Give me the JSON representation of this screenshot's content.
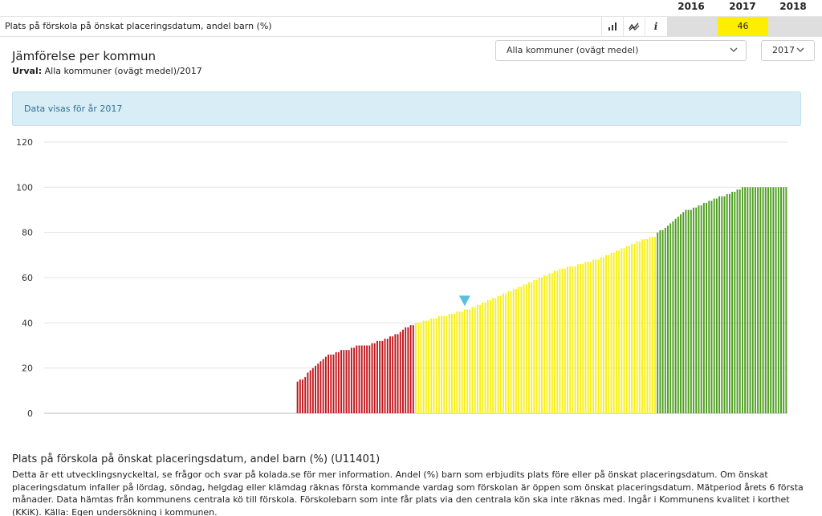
{
  "years": {
    "headers": [
      "2016",
      "2017",
      "2018"
    ],
    "selected": "2017"
  },
  "indicator_row": {
    "label": "Plats på förskola på önskat placeringsdatum, andel barn (%)",
    "value_2017": "46",
    "buttons": [
      {
        "name": "bar-chart-icon"
      },
      {
        "name": "trend-line-icon"
      },
      {
        "name": "info-icon",
        "glyph": "i"
      }
    ]
  },
  "header": {
    "title": "Jämförelse per kommun",
    "selection_label": "Urval:",
    "selection_value": "Alla kommuner (ovägt medel)/2017"
  },
  "controls": {
    "municipality_select": "Alla kommuner (ovägt medel)",
    "year_select": "2017"
  },
  "info": {
    "message": "Data visas för år 2017"
  },
  "colors": {
    "red": "#c0161c",
    "yellow": "#f7f018",
    "green": "#4c9e1e",
    "marker": "#5bc0de",
    "grid": "#e3e3e3"
  },
  "chart_data": {
    "type": "bar",
    "title": "",
    "xlabel": "",
    "ylabel": "",
    "ylim": [
      0,
      120
    ],
    "yticks": [
      0,
      20,
      40,
      60,
      80,
      100,
      120
    ],
    "grid": true,
    "category_count": 290,
    "marker_value": 46,
    "thresholds": {
      "red_below": 40,
      "green_from": 80
    },
    "values": [
      0,
      0,
      0,
      0,
      0,
      0,
      0,
      0,
      0,
      0,
      0,
      0,
      0,
      0,
      0,
      0,
      0,
      0,
      0,
      0,
      0,
      0,
      0,
      0,
      0,
      0,
      0,
      0,
      0,
      0,
      0,
      0,
      0,
      0,
      0,
      0,
      0,
      0,
      0,
      0,
      0,
      0,
      0,
      0,
      0,
      0,
      0,
      0,
      0,
      0,
      0,
      0,
      0,
      0,
      0,
      0,
      0,
      0,
      0,
      0,
      0,
      0,
      0,
      0,
      0,
      0,
      0,
      0,
      0,
      0,
      0,
      0,
      0,
      0,
      0,
      0,
      0,
      0,
      0,
      0,
      0,
      0,
      0,
      0,
      0,
      0,
      0,
      0,
      0,
      0,
      0,
      0,
      0,
      0,
      0,
      0,
      0,
      0,
      14,
      15,
      15,
      16,
      18,
      19,
      20,
      21,
      22,
      23,
      24,
      25,
      26,
      26,
      26,
      27,
      27,
      28,
      28,
      28,
      28,
      29,
      29,
      30,
      30,
      30,
      30,
      30,
      30,
      31,
      31,
      32,
      32,
      32,
      33,
      33,
      34,
      34,
      35,
      35,
      36,
      37,
      38,
      38,
      39,
      39,
      40,
      40,
      40,
      41,
      41,
      41,
      42,
      42,
      42,
      43,
      43,
      43,
      43,
      44,
      44,
      44,
      45,
      45,
      45,
      46,
      46,
      46,
      47,
      47,
      48,
      48,
      49,
      49,
      50,
      50,
      51,
      51,
      52,
      52,
      53,
      53,
      54,
      54,
      55,
      55,
      56,
      56,
      57,
      57,
      58,
      58,
      59,
      59,
      60,
      60,
      61,
      61,
      62,
      62,
      63,
      63,
      64,
      64,
      64,
      65,
      65,
      65,
      65,
      66,
      66,
      66,
      67,
      67,
      67,
      68,
      68,
      68,
      69,
      69,
      70,
      70,
      71,
      71,
      72,
      72,
      73,
      73,
      74,
      74,
      75,
      75,
      76,
      76,
      77,
      77,
      77,
      78,
      78,
      78,
      80,
      81,
      81,
      82,
      83,
      84,
      85,
      86,
      87,
      88,
      89,
      90,
      90,
      90,
      91,
      91,
      92,
      92,
      93,
      93,
      94,
      94,
      95,
      95,
      96,
      96,
      96,
      97,
      97,
      98,
      98,
      99,
      99,
      100,
      100,
      100,
      100,
      100,
      100,
      100,
      100,
      100,
      100,
      100,
      100,
      100,
      100,
      100,
      100,
      100,
      100
    ]
  },
  "description": {
    "title": "Plats på förskola på önskat placeringsdatum, andel barn (%) (U11401)",
    "text": "Detta är ett utvecklingsnyckeltal, se frågor och svar på kolada.se för mer information. Andel (%) barn som erbjudits plats före eller på önskat placeringsdatum. Om önskat placeringsdatum infaller på lördag, söndag, helgdag eller klämdag räknas första kommande vardag som förskolan är öppen som önskat placeringsdatum. Mätperiod årets 6 första månader. Data hämtas från kommunens centrala kö till förskola. Förskolebarn som inte får plats via den centrala kön ska inte räknas med. Ingår i Kommunens kvalitet i korthet (KKiK). Källa: Egen undersökning i kommunen."
  }
}
